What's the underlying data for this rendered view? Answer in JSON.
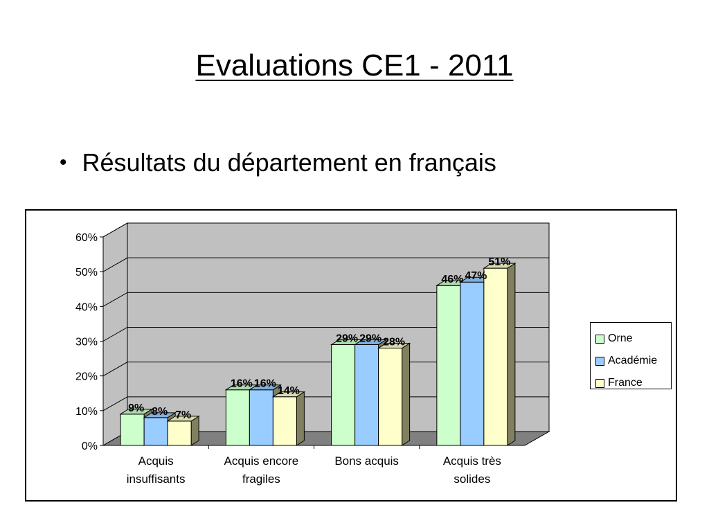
{
  "slide": {
    "title": "Evaluations CE1 - 2011",
    "bullet": "Résultats du département en français"
  },
  "chart_data": {
    "type": "bar",
    "title": "",
    "xlabel": "",
    "ylabel": "",
    "ylim": [
      0,
      60
    ],
    "yticks": [
      "0%",
      "10%",
      "20%",
      "30%",
      "40%",
      "50%",
      "60%"
    ],
    "categories": [
      [
        "Acquis",
        "insuffisants"
      ],
      [
        "Acquis encore",
        "fragiles"
      ],
      [
        "Bons acquis"
      ],
      [
        "Acquis très",
        "solides"
      ]
    ],
    "series": [
      {
        "name": "Orne",
        "color": "#CCFFCC",
        "values": [
          9,
          16,
          29,
          46
        ],
        "labels": [
          "9%",
          "16%",
          "29%",
          "46%"
        ]
      },
      {
        "name": "Académie",
        "color": "#99CCFF",
        "values": [
          8,
          16,
          29,
          47
        ],
        "labels": [
          "8%",
          "16%",
          "29%",
          "47%"
        ]
      },
      {
        "name": "France",
        "color": "#FFFFCC",
        "values": [
          7,
          14,
          28,
          51
        ],
        "labels": [
          "7%",
          "14%",
          "28%",
          "51%"
        ]
      }
    ],
    "wall_color": "#C0C0C0",
    "floor_color": "#808080",
    "grid": true,
    "legend_position": "right"
  }
}
